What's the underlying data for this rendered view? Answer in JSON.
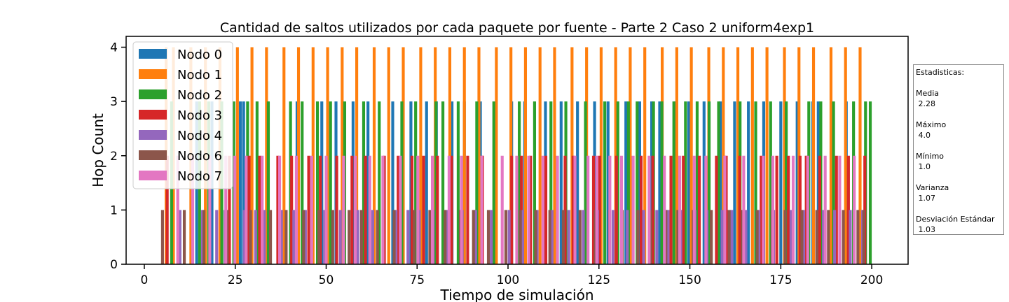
{
  "chart_data": {
    "type": "bar",
    "title": "Cantidad de saltos utilizados por cada paquete por fuente - Parte 2 Caso 2 uniform4exp1",
    "xlabel": "Tiempo de simulación",
    "ylabel": "Hop Count",
    "xlim": [
      -5,
      210
    ],
    "ylim": [
      0,
      4.2
    ],
    "xticks": [
      0,
      25,
      50,
      75,
      100,
      125,
      150,
      175,
      200
    ],
    "yticks": [
      0,
      1,
      2,
      3,
      4
    ],
    "legend_position": "top-left",
    "series": [
      {
        "name": "Nodo 0",
        "color": "#1f77b4",
        "hop": 3,
        "x": [
          14.4,
          18.6,
          26.4,
          27.3,
          33.8,
          42.0,
          48.8,
          52.7,
          57.4,
          61.5,
          68.3,
          73.3,
          77.6,
          80.3,
          84.6,
          88.0,
          92.4,
          101.0,
          104.6,
          110.3,
          114.6,
          119.1,
          123.8,
          127.5,
          132.4,
          136.2,
          139.5,
          141.7,
          146.1,
          149.7,
          153.9,
          158.4,
          162.3,
          166.1,
          170.3,
          175.0,
          179.5,
          183.8,
          185.3,
          193.0
        ]
      },
      {
        "name": "Nodo 1",
        "color": "#ff7f0e",
        "hop": 4,
        "x": [
          6.0,
          8.0,
          12.8,
          16.8,
          20.8,
          25.6,
          29.6,
          33.6,
          38.4,
          42.4,
          46.4,
          50.4,
          54.4,
          58.4,
          63.2,
          67.2,
          71.2,
          76.0,
          80.0,
          84.0,
          88.0,
          92.0,
          96.8,
          100.8,
          104.8,
          108.8,
          112.8,
          117.6,
          121.6,
          125.6,
          129.6,
          133.6,
          137.6,
          142.4,
          146.4,
          150.4,
          155.2,
          159.2,
          163.2,
          167.2,
          171.2,
          176.0,
          180.0,
          184.0,
          188.8,
          192.8,
          196.8
        ]
      },
      {
        "name": "Nodo 2",
        "color": "#2ca02c",
        "hop": 3,
        "x": [
          7.5,
          15.2,
          17.7,
          21.3,
          24.6,
          28.4,
          31.0,
          34.1,
          40.2,
          43.4,
          47.6,
          51.2,
          55.1,
          60.3,
          64.6,
          70.8,
          74.6,
          80.2,
          82.1,
          86.3,
          91.4,
          96.1,
          103.1,
          107.3,
          111.8,
          115.9,
          121.3,
          126.6,
          130.2,
          133.1,
          135.5,
          140.0,
          142.3,
          145.6,
          148.8,
          152.0,
          155.3,
          157.9,
          163.8,
          168.1,
          172.2,
          176.5,
          182.7,
          186.0,
          189.5,
          195.0,
          198.3,
          199.6
        ]
      },
      {
        "name": "Nodo 3",
        "color": "#d62728",
        "hop": 2,
        "x": [
          6.3,
          23.4,
          28.8,
          31.7,
          36.7,
          40.5,
          45.2,
          48.4,
          52.9,
          57.1,
          60.8,
          66.0,
          69.8,
          73.6,
          76.8,
          80.6,
          84.5,
          88.9,
          93.0,
          101.0,
          103.7,
          106.2,
          110.4,
          115.7,
          117.9,
          123.5,
          125.2,
          129.8,
          136.6,
          139.8,
          144.8,
          148.2,
          152.6,
          157.3,
          160.0,
          163.7,
          169.6,
          173.9,
          177.1,
          180.3,
          182.0,
          185.7,
          190.3,
          193.6,
          198.1
        ]
      },
      {
        "name": "Nodo 4",
        "color": "#9467bd",
        "hop": 1,
        "x": [
          9.8,
          16.0,
          19.9,
          22.2,
          27.5,
          30.6,
          33.0,
          37.7,
          41.1,
          44.3,
          49.6,
          53.9,
          58.7,
          62.8,
          69.2,
          72.5,
          75.6,
          79.4,
          83.2,
          87.4,
          91.1,
          95.4,
          100.3,
          104.0,
          108.0,
          112.1,
          116.7,
          120.7,
          124.6,
          128.9,
          132.8,
          137.3,
          140.9,
          144.0,
          147.5,
          151.4,
          154.7,
          158.9,
          161.5,
          165.4,
          169.0,
          173.0,
          177.8,
          181.3,
          186.7,
          189.8,
          194.1,
          197.5
        ]
      },
      {
        "name": "Nodo 6",
        "color": "#8c564b",
        "hop": 1,
        "x": [
          5.0,
          11.0,
          16.4,
          22.8,
          29.2,
          34.7,
          39.0,
          43.8,
          48.0,
          51.8,
          56.3,
          59.7,
          64.1,
          68.7,
          74.2,
          78.5,
          82.7,
          86.9,
          90.5,
          94.6,
          99.4,
          103.4,
          107.6,
          111.5,
          115.2,
          119.8,
          124.0,
          127.9,
          131.4,
          135.7,
          139.2,
          143.4,
          146.7,
          150.9,
          155.9,
          160.8,
          164.4,
          168.5,
          172.6,
          176.2,
          180.8,
          184.9,
          188.1,
          192.2,
          196.2,
          197.8
        ]
      },
      {
        "name": "Nodo 7",
        "color": "#e377c2",
        "hop": 2,
        "x": [
          9.2,
          13.3,
          18.0,
          22.4,
          24.9,
          28.0,
          32.4,
          37.2,
          41.8,
          46.0,
          50.0,
          54.8,
          58.0,
          62.0,
          65.6,
          70.4,
          75.2,
          79.2,
          83.8,
          87.2,
          92.8,
          98.4,
          102.4,
          105.7,
          109.6,
          113.6,
          118.4,
          122.0,
          124.4,
          128.0,
          131.2,
          134.4,
          138.8,
          143.0,
          147.2,
          151.2,
          154.4,
          159.6,
          164.8,
          170.2,
          172.8,
          178.4,
          182.4,
          187.2,
          191.2,
          195.2
        ]
      }
    ]
  },
  "stats": {
    "header": "Estadisticas:",
    "items": [
      {
        "label": "Media",
        "value": " 2.28"
      },
      {
        "label": "Máximo",
        "value": " 4.0"
      },
      {
        "label": "Mínimo",
        "value": " 1.0"
      },
      {
        "label": "Varianza",
        "value": " 1.07"
      },
      {
        "label": "Desviación Estándar",
        "value": " 1.03"
      }
    ]
  }
}
